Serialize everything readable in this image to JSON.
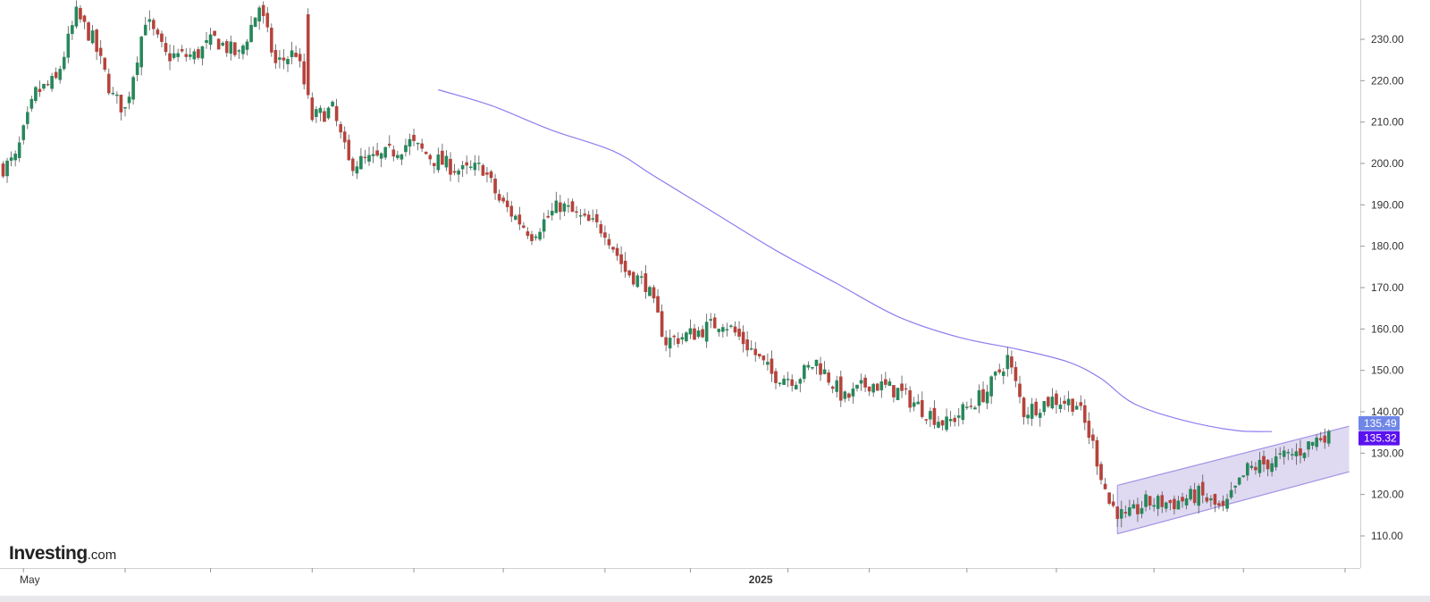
{
  "brand": {
    "name": "Investing",
    "suffix": ".com"
  },
  "colors": {
    "up": "#26875a",
    "down": "#b5433b",
    "ma_line": "#8c7ef0",
    "channel_fill": "#d9d4ef",
    "channel_stroke": "#a392e3",
    "tag_ma": "#6f86e8",
    "tag_last": "#5a12f0",
    "axis": "#d0d0d0"
  },
  "chart_data": {
    "type": "candlestick",
    "title": "",
    "xlabel": "",
    "ylabel": "",
    "ylim": [
      104,
      242
    ],
    "y_ticks": [
      110,
      120,
      130,
      140,
      150,
      160,
      170,
      180,
      190,
      200,
      210,
      220,
      230
    ],
    "y_tick_labels": [
      "110.00",
      "120.00",
      "130.00",
      "140.00",
      "150.00",
      "160.00",
      "170.00",
      "180.00",
      "190.00",
      "200.00",
      "210.00",
      "220.00",
      "230.00"
    ],
    "x_labels": [
      {
        "label": "May",
        "bar_index": 5,
        "bold": false
      },
      {
        "label": "2025",
        "bar_index": 186,
        "bold": true
      }
    ],
    "x_tick_bar_indices": [
      5,
      30,
      51,
      76,
      101,
      123,
      148,
      169,
      193,
      213,
      237,
      259,
      283,
      305,
      330
    ],
    "bar_count": 340,
    "anchors": [
      [
        0,
        199
      ],
      [
        3,
        201
      ],
      [
        8,
        217
      ],
      [
        13,
        220
      ],
      [
        18,
        236
      ],
      [
        22,
        230
      ],
      [
        27,
        216
      ],
      [
        30,
        213
      ],
      [
        35,
        235
      ],
      [
        40,
        226
      ],
      [
        47,
        226
      ],
      [
        52,
        230
      ],
      [
        58,
        226
      ],
      [
        63,
        238
      ],
      [
        67,
        224
      ],
      [
        72,
        227
      ],
      [
        76,
        211
      ],
      [
        81,
        213
      ],
      [
        85,
        200
      ],
      [
        92,
        201
      ],
      [
        100,
        205
      ],
      [
        106,
        201
      ],
      [
        113,
        198
      ],
      [
        118,
        199
      ],
      [
        122,
        191
      ],
      [
        130,
        183
      ],
      [
        137,
        190
      ],
      [
        143,
        186
      ],
      [
        148,
        184
      ],
      [
        153,
        174
      ],
      [
        158,
        171
      ],
      [
        163,
        157
      ],
      [
        170,
        159
      ],
      [
        177,
        162
      ],
      [
        184,
        155
      ],
      [
        189,
        149
      ],
      [
        195,
        148
      ],
      [
        200,
        152
      ],
      [
        207,
        143
      ],
      [
        213,
        147
      ],
      [
        220,
        145
      ],
      [
        227,
        140
      ],
      [
        232,
        137
      ],
      [
        237,
        141
      ],
      [
        242,
        145
      ],
      [
        247,
        153
      ],
      [
        251,
        140
      ],
      [
        258,
        143
      ],
      [
        264,
        142
      ],
      [
        268,
        132
      ],
      [
        272,
        118
      ],
      [
        276,
        114
      ],
      [
        281,
        118
      ],
      [
        288,
        118
      ],
      [
        294,
        120
      ],
      [
        300,
        116
      ],
      [
        306,
        126
      ],
      [
        312,
        128
      ],
      [
        318,
        130
      ],
      [
        324,
        134
      ],
      [
        326,
        135.32
      ]
    ],
    "gap": {
      "at_bar": 75,
      "value": 236
    },
    "moving_average": {
      "start_bar": 107,
      "points": [
        [
          107,
          217.8
        ],
        [
          120,
          214
        ],
        [
          135,
          208
        ],
        [
          150,
          203
        ],
        [
          160,
          197
        ],
        [
          175,
          188
        ],
        [
          190,
          179
        ],
        [
          205,
          171
        ],
        [
          220,
          163
        ],
        [
          235,
          158
        ],
        [
          250,
          155
        ],
        [
          262,
          152
        ],
        [
          270,
          148
        ],
        [
          278,
          142
        ],
        [
          290,
          138
        ],
        [
          303,
          135.5
        ],
        [
          312,
          135.2
        ]
      ],
      "value": 135.49
    },
    "channel": {
      "upper": [
        [
          274,
          122.2
        ],
        [
          331,
          136.5
        ]
      ],
      "lower": [
        [
          274,
          110.5
        ],
        [
          331,
          125.5
        ]
      ]
    },
    "last_price": 135.32,
    "price_tags": [
      {
        "label": "135.49",
        "value": 135.49,
        "color_key": "tag_ma"
      },
      {
        "label": "135.32",
        "value": 135.32,
        "color_key": "tag_last"
      }
    ]
  }
}
